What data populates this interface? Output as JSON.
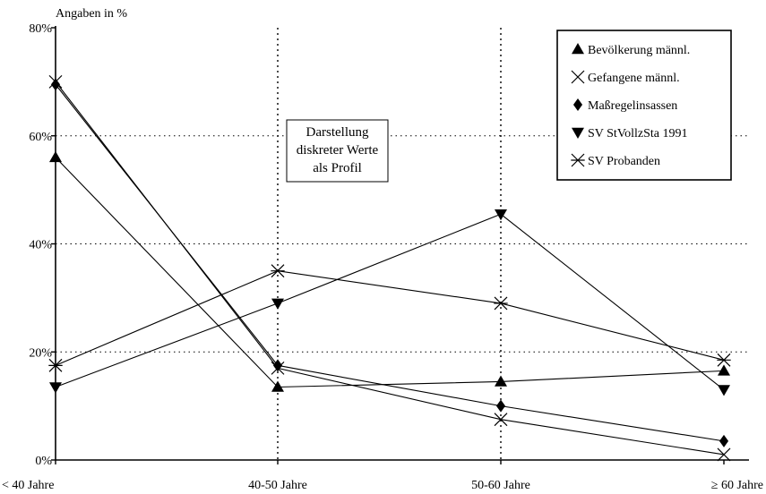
{
  "chart_data": {
    "type": "line",
    "ylabel": "Angaben in %",
    "categories": [
      "< 40 Jahre",
      "40-50 Jahre",
      "50-60 Jahre",
      "≥ 60 Jahre"
    ],
    "y_ticks": [
      "0%",
      "20%",
      "40%",
      "60%",
      "80%"
    ],
    "ylim": [
      0,
      80
    ],
    "grid": "dotted",
    "legend_position": "top-right",
    "note": [
      "Darstellung",
      "diskreter Werte",
      "als Profil"
    ],
    "series": [
      {
        "name": "Bevölkerung männl.",
        "marker": "triangle-up",
        "values": [
          56,
          13.5,
          14.5,
          16.5
        ]
      },
      {
        "name": "Gefangene männl.",
        "marker": "x-cross",
        "values": [
          70,
          17,
          7.5,
          1
        ]
      },
      {
        "name": "Maßregelinsassen",
        "marker": "diamond",
        "values": [
          69.5,
          17.5,
          10,
          3.5
        ]
      },
      {
        "name": "SV StVollzSta 1991",
        "marker": "triangle-down",
        "values": [
          13.5,
          29,
          45.5,
          13
        ]
      },
      {
        "name": "SV Probanden",
        "marker": "asterisk",
        "values": [
          17.5,
          35,
          29,
          18.5
        ]
      }
    ]
  }
}
